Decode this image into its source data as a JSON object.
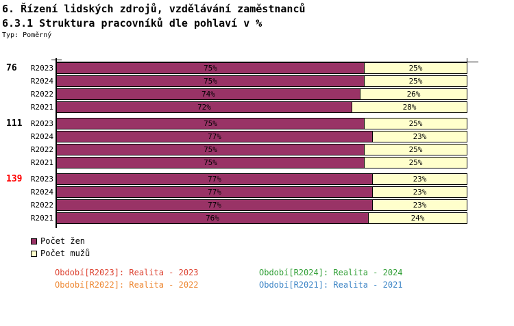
{
  "header": {
    "title_line1": "6. Řízení lidských zdrojů, vzdělávání zaměstnanců",
    "title_line2": "6.3.1 Struktura pracovníků dle pohlaví v %",
    "type_label": "Typ: Poměrný"
  },
  "chart_data": {
    "type": "bar",
    "orientation": "horizontal",
    "stacked": true,
    "unit": "%",
    "x_range": [
      0,
      100
    ],
    "series_names": [
      "Počet žen",
      "Počet mužů"
    ],
    "colors": {
      "women": "#993366",
      "men": "#ffffcc"
    },
    "groups": [
      {
        "label": "76",
        "label_color": "#000000",
        "rows": [
          {
            "period": "R2023",
            "women": 75,
            "men": 25
          },
          {
            "period": "R2024",
            "women": 75,
            "men": 25
          },
          {
            "period": "R2022",
            "women": 74,
            "men": 26
          },
          {
            "period": "R2021",
            "women": 72,
            "men": 28
          }
        ]
      },
      {
        "label": "111",
        "label_color": "#000000",
        "rows": [
          {
            "period": "R2023",
            "women": 75,
            "men": 25
          },
          {
            "period": "R2024",
            "women": 77,
            "men": 23
          },
          {
            "period": "R2022",
            "women": 75,
            "men": 25
          },
          {
            "period": "R2021",
            "women": 75,
            "men": 25
          }
        ]
      },
      {
        "label": "139",
        "label_color": "#ff0000",
        "rows": [
          {
            "period": "R2023",
            "women": 77,
            "men": 23
          },
          {
            "period": "R2024",
            "women": 77,
            "men": 23
          },
          {
            "period": "R2022",
            "women": 77,
            "men": 23
          },
          {
            "period": "R2021",
            "women": 76,
            "men": 24
          }
        ]
      }
    ]
  },
  "legend": {
    "items": [
      {
        "label": "Počet žen",
        "color": "#993366"
      },
      {
        "label": "Počet mužů",
        "color": "#ffffcc"
      }
    ]
  },
  "footer": {
    "items": [
      {
        "label": "Období[R2023]: Realita - 2023",
        "color": "#dd4433"
      },
      {
        "label": "Období[R2024]: Realita - 2024",
        "color": "#33a038"
      },
      {
        "label": "Období[R2022]: Realita - 2022",
        "color": "#ee8833"
      },
      {
        "label": "Období[R2021]: Realita - 2021",
        "color": "#3d85c6"
      }
    ]
  }
}
